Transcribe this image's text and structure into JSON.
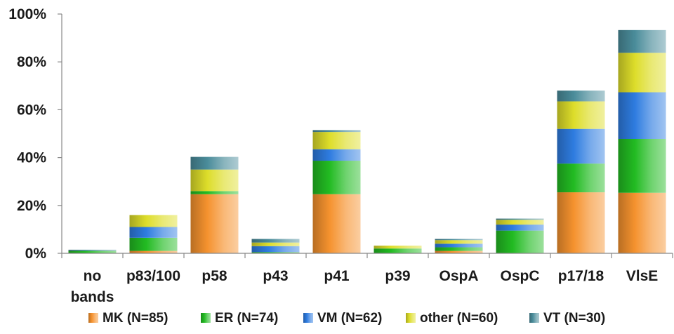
{
  "chart_data": {
    "type": "bar",
    "stacked": true,
    "categories": [
      [
        "no",
        "bands"
      ],
      [
        "p83/100"
      ],
      [
        "p58"
      ],
      [
        "p43"
      ],
      [
        "p41"
      ],
      [
        "p39"
      ],
      [
        "OspA"
      ],
      [
        "OspC"
      ],
      [
        "p17/18"
      ],
      [
        "VlsE"
      ]
    ],
    "series": [
      {
        "name": "MK (N=85)",
        "color": "#f5922e",
        "values": [
          0.0,
          1.0,
          24.7,
          0.0,
          24.7,
          0.0,
          1.0,
          0.0,
          25.5,
          25.3
        ]
      },
      {
        "name": "ER (N=74)",
        "color": "#22bb22",
        "values": [
          1.0,
          5.5,
          1.3,
          0.5,
          14.0,
          2.0,
          1.5,
          9.5,
          12.0,
          22.5
        ]
      },
      {
        "name": "VM (N=62)",
        "color": "#2e7ce0",
        "values": [
          0.0,
          4.5,
          0.0,
          2.5,
          4.8,
          0.0,
          1.5,
          2.5,
          14.5,
          19.5
        ]
      },
      {
        "name": "other (N=60)",
        "color": "#dddd2a",
        "values": [
          0.0,
          5.0,
          9.0,
          1.5,
          7.2,
          1.2,
          1.5,
          2.0,
          11.5,
          16.5
        ]
      },
      {
        "name": "VT (N=30)",
        "color": "#4a8c9a",
        "values": [
          0.5,
          0.0,
          5.3,
          1.5,
          0.8,
          0.0,
          0.5,
          0.5,
          4.5,
          9.5
        ]
      }
    ],
    "yticks": [
      "0%",
      "20%",
      "40%",
      "60%",
      "80%",
      "100%"
    ],
    "ylim": [
      0,
      100
    ],
    "grid": false,
    "legend_position": "bottom",
    "title": "",
    "xlabel": "",
    "ylabel": ""
  }
}
